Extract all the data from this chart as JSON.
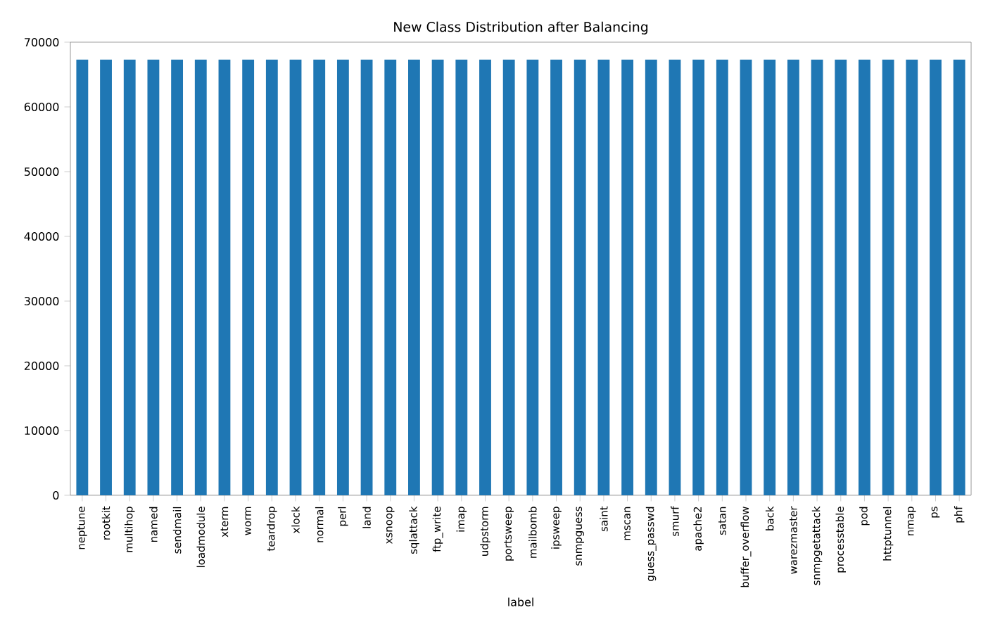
{
  "chart_data": {
    "type": "bar",
    "title": "New Class Distribution after Balancing",
    "xlabel": "label",
    "categories": [
      "neptune",
      "rootkit",
      "multihop",
      "named",
      "sendmail",
      "loadmodule",
      "xterm",
      "worm",
      "teardrop",
      "xlock",
      "normal",
      "perl",
      "land",
      "xsnoop",
      "sqlattack",
      "ftp_write",
      "imap",
      "udpstorm",
      "portsweep",
      "mailbomb",
      "ipsweep",
      "snmpguess",
      "saint",
      "mscan",
      "guess_passwd",
      "smurf",
      "apache2",
      "satan",
      "buffer_overflow",
      "back",
      "warezmaster",
      "snmpgetattack",
      "processtable",
      "pod",
      "httptunnel",
      "nmap",
      "ps",
      "phf"
    ],
    "values": [
      67300,
      67300,
      67300,
      67300,
      67300,
      67300,
      67300,
      67300,
      67300,
      67300,
      67300,
      67300,
      67300,
      67300,
      67300,
      67300,
      67300,
      67300,
      67300,
      67300,
      67300,
      67300,
      67300,
      67300,
      67300,
      67300,
      67300,
      67300,
      67300,
      67300,
      67300,
      67300,
      67300,
      67300,
      67300,
      67300,
      67300,
      67300
    ],
    "color": "#1f77b4",
    "ylim": [
      0,
      70000
    ],
    "yticks": [
      0,
      10000,
      20000,
      30000,
      40000,
      50000,
      60000,
      70000
    ]
  }
}
